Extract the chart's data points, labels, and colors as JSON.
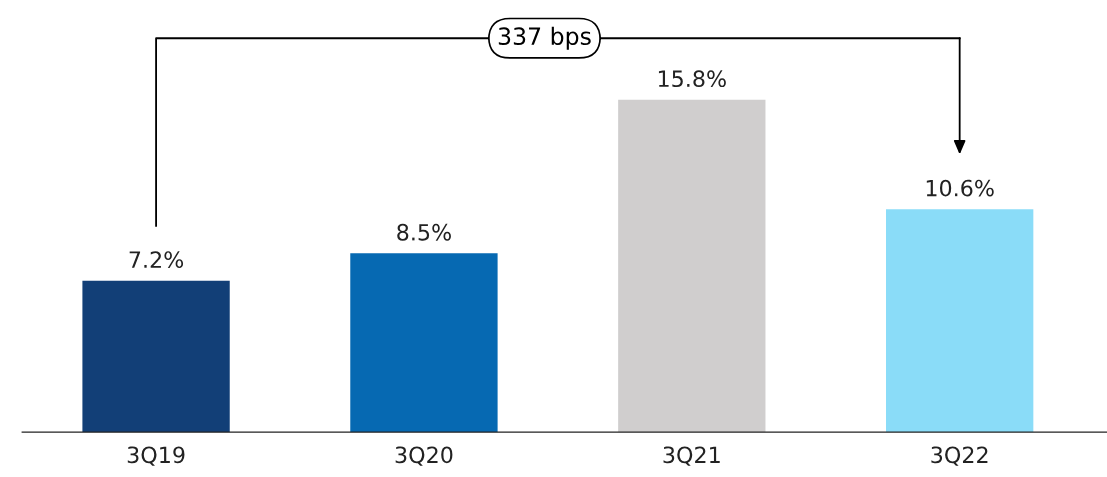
{
  "chart_data": {
    "type": "bar",
    "categories": [
      "3Q19",
      "3Q20",
      "3Q21",
      "3Q22"
    ],
    "values": [
      7.2,
      8.5,
      15.8,
      10.6
    ],
    "value_labels": [
      "7.2%",
      "8.5%",
      "15.8%",
      "10.6%"
    ],
    "colors": [
      "#123f77",
      "#0669b2",
      "#d0cece",
      "#8adcf8"
    ],
    "annotations": [
      "337 bps"
    ],
    "grid": false,
    "legend": false,
    "tick_labels": "x"
  }
}
